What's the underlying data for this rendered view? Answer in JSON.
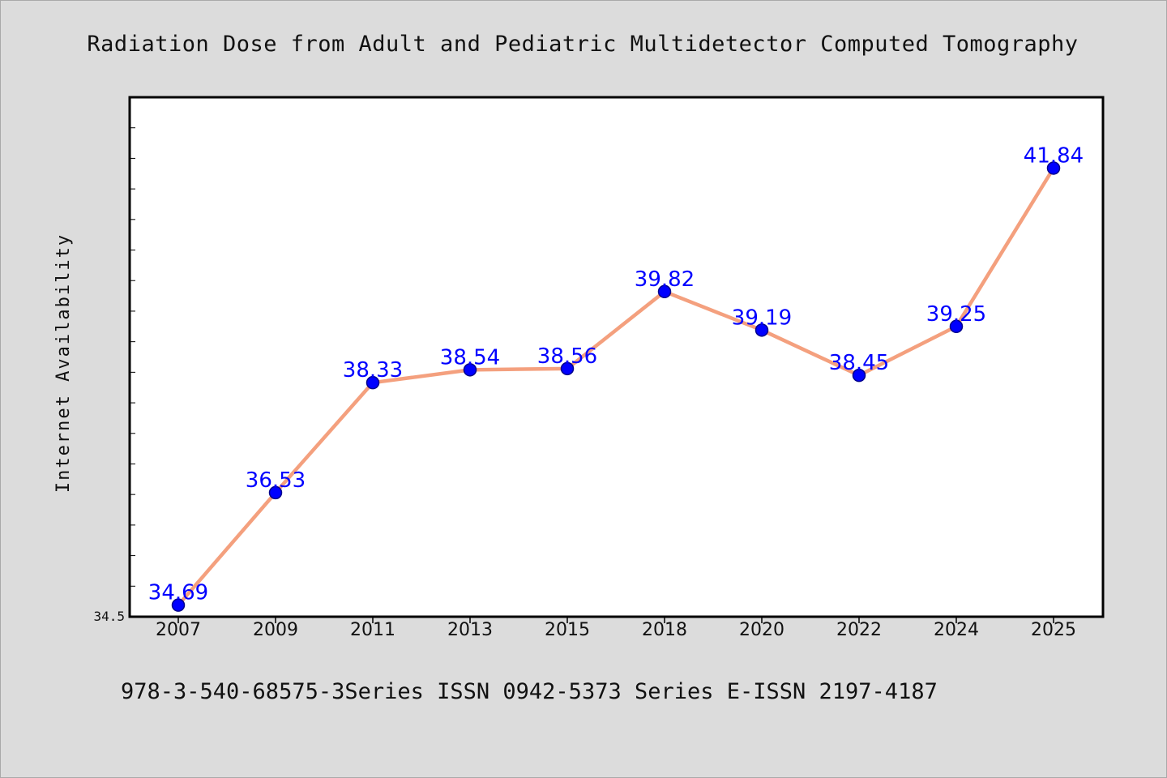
{
  "chart_data": {
    "type": "line",
    "title": "Radiation Dose from Adult and Pediatric Multidetector Computed Tomography",
    "xlabel": "",
    "ylabel": "Internet Availability",
    "categories": [
      "2007",
      "2009",
      "2011",
      "2013",
      "2015",
      "2018",
      "2020",
      "2022",
      "2024",
      "2025"
    ],
    "series": [
      {
        "values": [
          34.69,
          36.53,
          38.33,
          38.54,
          38.56,
          39.82,
          39.19,
          38.45,
          39.25,
          41.84
        ]
      }
    ],
    "data_labels": [
      "34.69",
      "36.53",
      "38.33",
      "38.54",
      "38.56",
      "39.82",
      "39.19",
      "38.45",
      "39.25",
      "41.84"
    ],
    "y_tick_labels": [
      "34.5"
    ],
    "ylim": [
      34.5,
      43.0
    ],
    "grid": false,
    "legend": "none",
    "colors": {
      "line": "#f4a07e",
      "marker": "#0000ff",
      "marker_edge": "#00008b",
      "label": "#0000ff",
      "background": "#dcdcdc",
      "plot_background": "#ffffff"
    }
  },
  "footer": "978-3-540-68575-3Series ISSN 0942-5373 Series E-ISSN 2197-4187"
}
